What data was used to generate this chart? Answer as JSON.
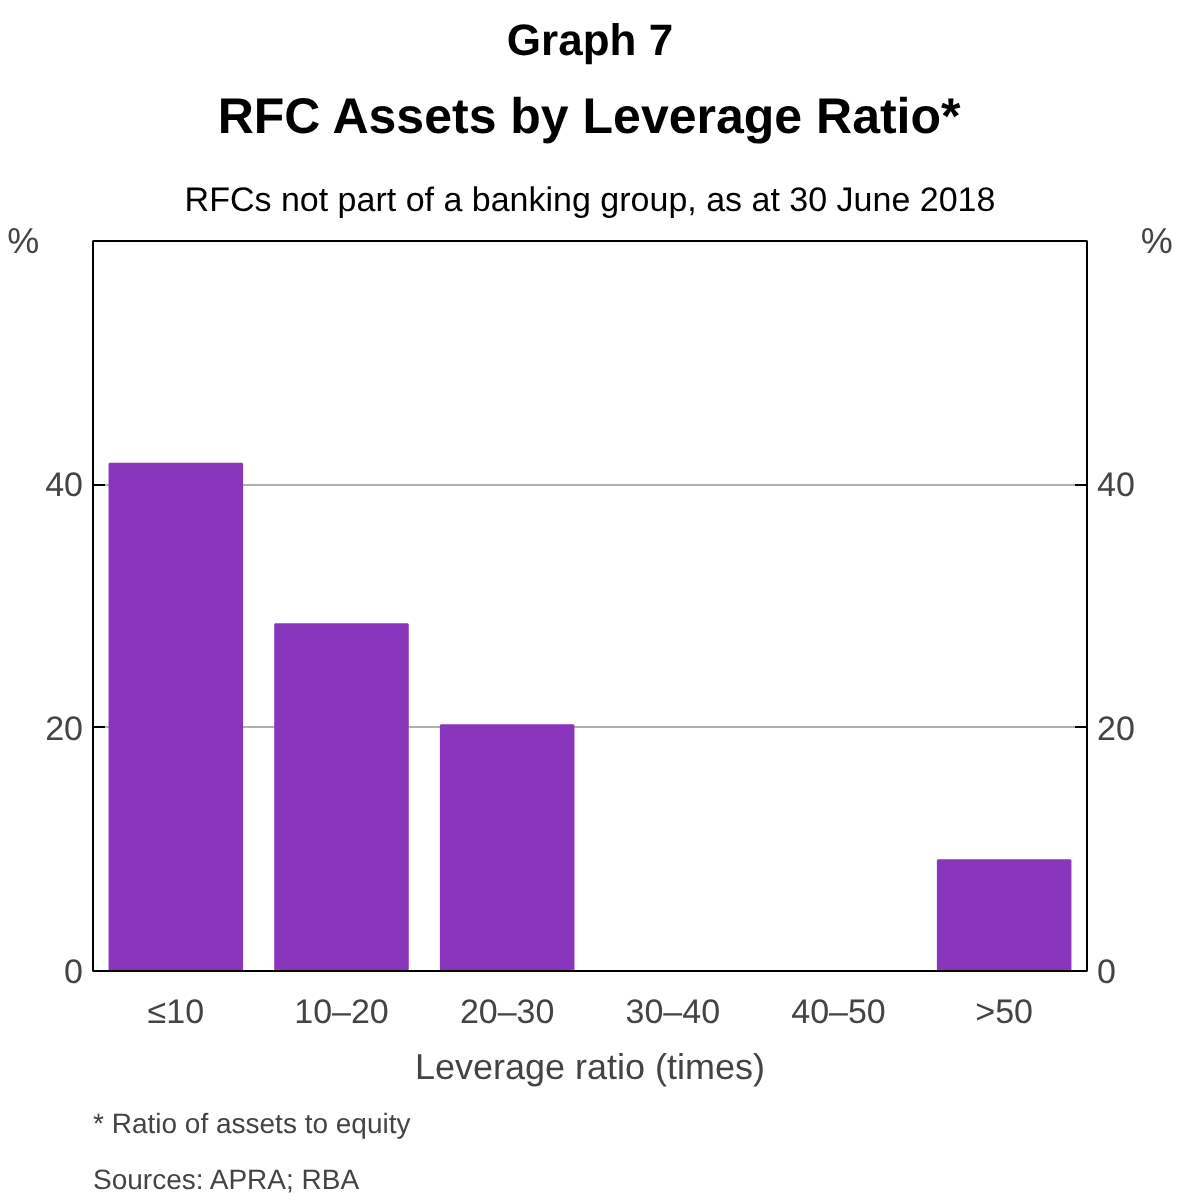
{
  "chart_data": {
    "type": "bar",
    "title": "RFC Assets by Leverage Ratio*",
    "subtitle": "RFCs not part of a banking group, as at 30 June 2018",
    "xlabel": "Leverage ratio (times)",
    "ylabel": "%",
    "y2label": "%",
    "categories": [
      "≤10",
      "10–20",
      "20–30",
      "30–40",
      "40–50",
      ">50"
    ],
    "values": [
      41.7,
      28.5,
      20.2,
      0,
      0,
      9.1
    ],
    "color": "#8a36bc",
    "ylim": [
      0,
      60
    ],
    "yticks": [
      0,
      20,
      40
    ],
    "y2lim": [
      0,
      60
    ],
    "y2ticks": [
      0,
      20,
      40
    ],
    "grid": "y",
    "annotations": [
      "Graph 7",
      "*      Ratio of assets to equity",
      "Sources: APRA; RBA"
    ]
  }
}
